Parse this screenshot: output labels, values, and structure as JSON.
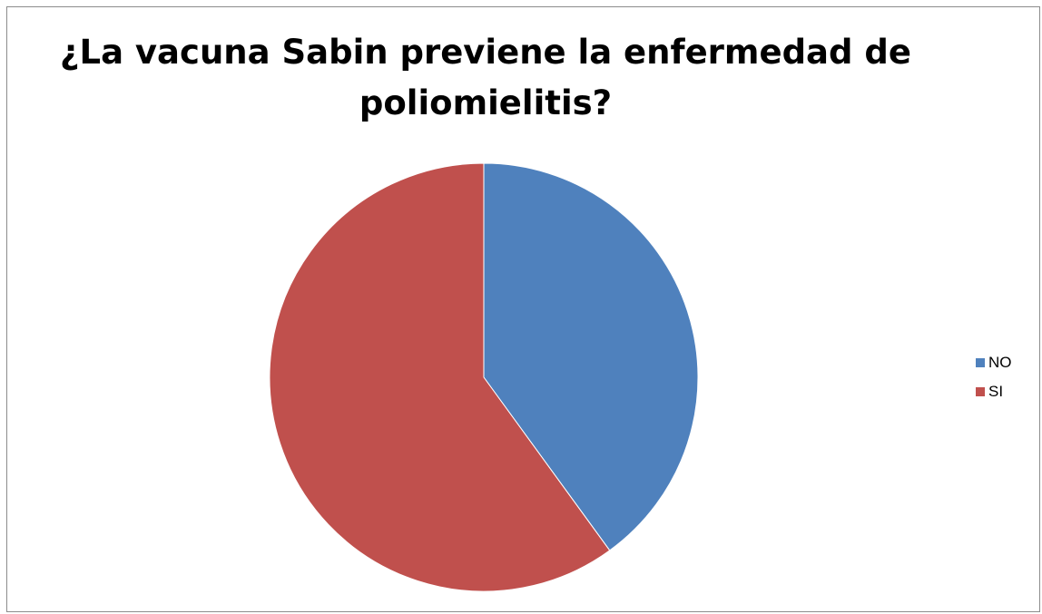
{
  "chart_data": {
    "type": "pie",
    "title": "¿La vacuna Sabin previene la enfermedad de poliomielitis?",
    "slices": [
      {
        "label": "NO",
        "value": 40,
        "color": "#4F81BD"
      },
      {
        "label": "SI",
        "value": 60,
        "color": "#C0504D"
      }
    ],
    "legend_position": "right"
  },
  "legend": {
    "items": [
      {
        "label": "NO",
        "color": "#4F81BD"
      },
      {
        "label": "SI",
        "color": "#C0504D"
      }
    ]
  }
}
